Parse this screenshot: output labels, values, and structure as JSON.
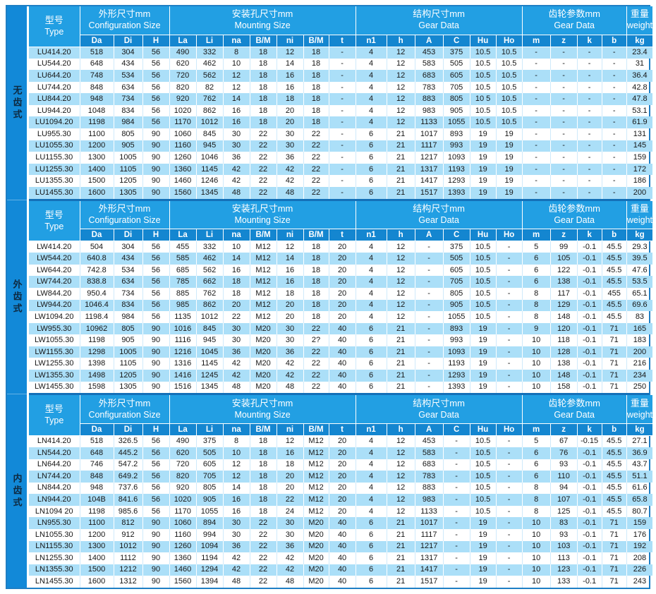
{
  "colors": {
    "frame_border": "#1e7fc5",
    "sidebar_bg": "#1289d8",
    "header_bg": "#229fe3",
    "subheader_bg": "#1486d0",
    "row_alt": "#abdff8",
    "separator": "#1470b8"
  },
  "sidebar": {
    "sections": [
      "无齿式",
      "外齿式",
      "内齿式"
    ]
  },
  "table_header": {
    "type": {
      "zh": "型号",
      "en": "Type"
    },
    "groups": [
      {
        "zh": "外形尺寸mm",
        "en": "Configuration Size",
        "cols": [
          "Da",
          "Di",
          "H"
        ]
      },
      {
        "zh": "安装孔尺寸mm",
        "en": "Mounting Size",
        "cols": [
          "La",
          "Li",
          "na",
          "B/M",
          "ni",
          "B/M",
          "t"
        ]
      },
      {
        "zh": "结构尺寸mm",
        "en": "Gear Data",
        "cols": [
          "n1",
          "h",
          "A",
          "C",
          "Hu",
          "Ho"
        ]
      },
      {
        "zh": "齿轮参数mm",
        "en": "Gear Data",
        "cols": [
          "m",
          "z",
          "k",
          "b"
        ]
      }
    ],
    "weight": {
      "zh": "重量",
      "en": "weight",
      "unit": "kg"
    }
  },
  "sections": [
    {
      "label": "无齿式",
      "rows": [
        [
          "LU414.20",
          "518",
          "304",
          "56",
          "490",
          "332",
          "8",
          "18",
          "12",
          "18",
          "-",
          "4",
          "12",
          "453",
          "375",
          "10.5",
          "10.5",
          "-",
          "-",
          "-",
          "-",
          "23.4"
        ],
        [
          "LU544.20",
          "648",
          "434",
          "56",
          "620",
          "462",
          "10",
          "18",
          "14",
          "18",
          "-",
          "4",
          "12",
          "583",
          "505",
          "10.5",
          "10.5",
          "-",
          "-",
          "-",
          "-",
          "31"
        ],
        [
          "LU644.20",
          "748",
          "534",
          "56",
          "720",
          "562",
          "12",
          "18",
          "16",
          "18",
          "-",
          "4",
          "12",
          "683",
          "605",
          "10.5",
          "10.5",
          "-",
          "-",
          "-",
          "-",
          "36.4"
        ],
        [
          "LU744.20",
          "848",
          "634",
          "56",
          "820",
          "82",
          "12",
          "18",
          "16",
          "18",
          "-",
          "4",
          "12",
          "783",
          "705",
          "10.5",
          "10.5",
          "-",
          "-",
          "-",
          "-",
          "42.8"
        ],
        [
          "LU844.20",
          "948",
          "734",
          "56",
          "920",
          "762",
          "14",
          "18",
          "18",
          "18",
          "-",
          "4",
          "12",
          "883",
          "805",
          "10 5",
          "10.5",
          "-",
          "-",
          "-",
          "-",
          "47.8"
        ],
        [
          "LU944.20",
          "1048",
          "834",
          "56",
          "1020",
          "862",
          "16",
          "18",
          "20",
          "18",
          "-",
          "4",
          "12",
          "983",
          "905",
          "10.5",
          "10.5",
          "-",
          "-",
          "-",
          "-",
          "53.1"
        ],
        [
          "LU1094.20",
          "1198",
          "984",
          "56",
          "1170",
          "1012",
          "16",
          "18",
          "20",
          "18",
          "-",
          "4",
          "12",
          "1133",
          "1055",
          "10.5",
          "10.5",
          "-",
          "-",
          "-",
          "-",
          "61.9"
        ],
        [
          "LU955.30",
          "1100",
          "805",
          "90",
          "1060",
          "845",
          "30",
          "22",
          "30",
          "22",
          "-",
          "6",
          "21",
          "1017",
          "893",
          "19",
          "19",
          "-",
          "-",
          "-",
          "-",
          "131"
        ],
        [
          "LU1055.30",
          "1200",
          "905",
          "90",
          "1160",
          "945",
          "30",
          "22",
          "30",
          "22",
          "-",
          "6",
          "21",
          "1117",
          "993",
          "19",
          "19",
          "-",
          "-",
          "-",
          "-",
          "145"
        ],
        [
          "LU1155.30",
          "1300",
          "1005",
          "90",
          "1260",
          "1046",
          "36",
          "22",
          "36",
          "22",
          "-",
          "6",
          "21",
          "1217",
          "1093",
          "19",
          "19",
          "-",
          "-",
          "-",
          "-",
          "159"
        ],
        [
          "LU1255.30",
          "1400",
          "1105",
          "90",
          "1360",
          "1145",
          "42",
          "22",
          "42",
          "22",
          "-",
          "6",
          "21",
          "1317",
          "1193",
          "19",
          "19",
          "-",
          "-",
          "-",
          "-",
          "172"
        ],
        [
          "LU1355.30",
          "1500",
          "1205",
          "90",
          "1460",
          "1246",
          "42",
          "22",
          "42",
          "22",
          "-",
          "6",
          "21",
          "1417",
          "1293",
          "19",
          "19",
          "-",
          "-",
          "-",
          "-",
          "186"
        ],
        [
          "LU1455.30",
          "1600",
          "1305",
          "90",
          "1560",
          "1345",
          "48",
          "22",
          "48",
          "22",
          "-",
          "6",
          "21",
          "1517",
          "1393",
          "19",
          "19",
          "-",
          "-",
          "-",
          "-",
          "200"
        ]
      ]
    },
    {
      "label": "外齿式",
      "rows": [
        [
          "LW414.20",
          "504",
          "304",
          "56",
          "455",
          "332",
          "10",
          "M12",
          "12",
          "18",
          "20",
          "4",
          "12",
          "-",
          "375",
          "10.5",
          "-",
          "5",
          "99",
          "-0.1",
          "45.5",
          "29.3"
        ],
        [
          "LW544.20",
          "640.8",
          "434",
          "56",
          "585",
          "462",
          "14",
          "M12",
          "14",
          "18",
          "20",
          "4",
          "12",
          "-",
          "505",
          "10.5",
          "-",
          "6",
          "105",
          "-0.1",
          "45.5",
          "39.5"
        ],
        [
          "LW644.20",
          "742.8",
          "534",
          "56",
          "685",
          "562",
          "16",
          "M12",
          "16",
          "18",
          "20",
          "4",
          "12",
          "-",
          "605",
          "10.5",
          "-",
          "6",
          "122",
          "-0.1",
          "45.5",
          "47.6"
        ],
        [
          "LW744.20",
          "838.8",
          "634",
          "56",
          "785",
          "662",
          "18",
          "M12",
          "16",
          "18",
          "20",
          "4",
          "12",
          "-",
          "705",
          "10.5",
          "-",
          "6",
          "138",
          "-0.1",
          "45.5",
          "53.5"
        ],
        [
          "LW844.20",
          "950.4",
          "734",
          "56",
          "885",
          "762",
          "18",
          "M12",
          "18",
          "18",
          "20",
          "4",
          "12",
          "-",
          "805",
          "10.5",
          "-",
          "8",
          "117",
          "-0.1",
          "455",
          "65.1"
        ],
        [
          "LW944.20",
          "1046.4",
          "834",
          "56",
          "985",
          "862",
          "20",
          "M12",
          "20",
          "18",
          "20",
          "4",
          "12",
          "-",
          "905",
          "10.5",
          "-",
          "8",
          "129",
          "-0.1",
          "45.5",
          "69.6"
        ],
        [
          "LW1094.20",
          "1198.4",
          "984",
          "56",
          "1135",
          "1012",
          "22",
          "M12",
          "20",
          "18",
          "20",
          "4",
          "12",
          "-",
          "1055",
          "10.5",
          "-",
          "8",
          "148",
          "-0.1",
          "45.5",
          "83"
        ],
        [
          "LW955.30",
          "10962",
          "805",
          "90",
          "1016",
          "845",
          "30",
          "M20",
          "30",
          "22",
          "40",
          "6",
          "21",
          "-",
          "893",
          "19",
          "-",
          "9",
          "120",
          "-0.1",
          "71",
          "165"
        ],
        [
          "LW1055.30",
          "1198",
          "905",
          "90",
          "1116",
          "945",
          "30",
          "M20",
          "30",
          "2?",
          "40",
          "6",
          "21",
          "-",
          "993",
          "19",
          "-",
          "10",
          "118",
          "-0.1",
          "71",
          "183"
        ],
        [
          "LW1155.30",
          "1298",
          "1005",
          "90",
          "1216",
          "1045",
          "36",
          "M20",
          "36",
          "22",
          "40",
          "6",
          "21",
          "-",
          "1093",
          "19",
          "-",
          "10",
          "128",
          "-0.1",
          "71",
          "200"
        ],
        [
          "LW1255.30",
          "1398",
          "1105",
          "90",
          "1316",
          "1145",
          "42",
          "M20",
          "42",
          "22",
          "40",
          "6",
          "21",
          "-",
          "1193",
          "19",
          "-",
          "10",
          "138",
          "-0.1",
          "71",
          "216"
        ],
        [
          "LW1355.30",
          "1498",
          "1205",
          "90",
          "1416",
          "1245",
          "42",
          "M20",
          "42",
          "22",
          "40",
          "6",
          "21",
          "-",
          "1293",
          "19",
          "-",
          "10",
          "148",
          "-0.1",
          "71",
          "234"
        ],
        [
          "LW1455.30",
          "1598",
          "1305",
          "90",
          "1516",
          "1345",
          "48",
          "M20",
          "48",
          "22",
          "40",
          "6",
          "21",
          "-",
          "1393",
          "19",
          "-",
          "10",
          "158",
          "-0.1",
          "71",
          "250"
        ]
      ]
    },
    {
      "label": "内齿式",
      "rows": [
        [
          "LN414.20",
          "518",
          "326.5",
          "56",
          "490",
          "375",
          "8",
          "18",
          "12",
          "M12",
          "20",
          "4",
          "12",
          "453",
          "-",
          "10.5",
          "-",
          "5",
          "67",
          "-0.15",
          "45.5",
          "27.1"
        ],
        [
          "LN544.20",
          "648",
          "445.2",
          "56",
          "620",
          "505",
          "10",
          "18",
          "16",
          "M12",
          "20",
          "4",
          "12",
          "583",
          "-",
          "10.5",
          "-",
          "6",
          "76",
          "-0.1",
          "45.5",
          "36.9"
        ],
        [
          "LN644.20",
          "746",
          "547.2",
          "56",
          "720",
          "605",
          "12",
          "18",
          "18",
          "M12",
          "20",
          "4",
          "12",
          "683",
          "-",
          "10.5",
          "-",
          "6",
          "93",
          "-0.1",
          "45.5",
          "43.7"
        ],
        [
          "LN744.20",
          "848",
          "649.2",
          "56",
          "820",
          "705",
          "12",
          "18",
          "20",
          "M12",
          "20",
          "4",
          "12",
          "783",
          "-",
          "10.5",
          "-",
          "6",
          "110",
          "-0.1",
          "45.5",
          "51.1"
        ],
        [
          "LN844.20",
          "948",
          "737.6",
          "56",
          "920",
          "805",
          "14",
          "18",
          "20",
          "M12",
          "20",
          "4",
          "12",
          "883",
          "-",
          "10.5",
          "-",
          "8",
          "94",
          "-0.1",
          "45.5",
          "61.6"
        ],
        [
          "LN944.20",
          "104B",
          "841.6",
          "56",
          "1020",
          "905",
          "16",
          "18",
          "22",
          "M12",
          "20",
          "4",
          "12",
          "983",
          "-",
          "10.5",
          "-",
          "8",
          "107",
          "-0.1",
          "45.5",
          "65.8"
        ],
        [
          "LN1094 20",
          "1198",
          "985.6",
          "56",
          "1170",
          "1055",
          "16",
          "18",
          "24",
          "M12",
          "20",
          "4",
          "12",
          "1133",
          "-",
          "10.5",
          "-",
          "8",
          "125",
          "-0.1",
          "45.5",
          "80.7"
        ],
        [
          "LN955.30",
          "1100",
          "812",
          "90",
          "1060",
          "894",
          "30",
          "22",
          "30",
          "M20",
          "40",
          "6",
          "21",
          "1017",
          "-",
          "19",
          "-",
          "10",
          "83",
          "-0.1",
          "71",
          "159"
        ],
        [
          "LN1055.30",
          "1200",
          "912",
          "90",
          "1160",
          "994",
          "30",
          "22",
          "30",
          "M20",
          "40",
          "6",
          "21",
          "1117",
          "-",
          "19",
          "-",
          "10",
          "93",
          "-0.1",
          "71",
          "176"
        ],
        [
          "LN1155.30",
          "1300",
          "1012",
          "90",
          "1260",
          "1094",
          "36",
          "22",
          "36",
          "M20",
          "40",
          "6",
          "21",
          "1217",
          "-",
          "19",
          "-",
          "10",
          "103",
          "-0.1",
          "71",
          "192"
        ],
        [
          "LN1255.30",
          "1400",
          "1112",
          "90",
          "1360",
          "1194",
          "42",
          "22",
          "42",
          "M20",
          "40",
          "6",
          "21",
          "1317",
          "-",
          "19",
          "-",
          "10",
          "113",
          "-0.1",
          "71",
          "208"
        ],
        [
          "LN1355.30",
          "1500",
          "1212",
          "90",
          "1460",
          "1294",
          "42",
          "22",
          "42",
          "M20",
          "40",
          "6",
          "21",
          "1417",
          "-",
          "19",
          "-",
          "10",
          "123",
          "-0.1",
          "71",
          "226"
        ],
        [
          "LN1455.30",
          "1600",
          "1312",
          "90",
          "1560",
          "1394",
          "48",
          "22",
          "48",
          "M20",
          "40",
          "6",
          "21",
          "1517",
          "-",
          "19",
          "-",
          "10",
          "133",
          "-0.1",
          "71",
          "243"
        ]
      ]
    }
  ]
}
